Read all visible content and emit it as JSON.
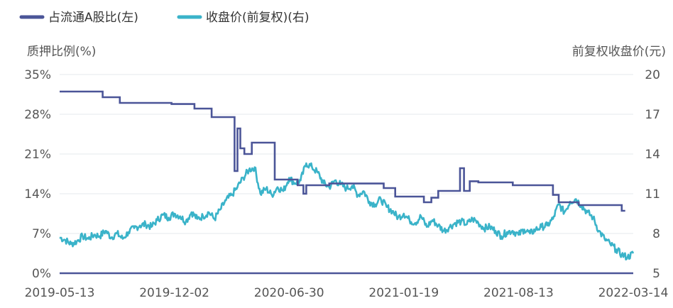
{
  "chart_data": {
    "type": "line",
    "legend": [
      {
        "label": "占流通A股比(左)",
        "color": "#4b5598"
      },
      {
        "label": "收盘价(前复权)(右)",
        "color": "#3ab3c9"
      }
    ],
    "left_axis": {
      "title": "质押比例(%)",
      "ticks": [
        "35%",
        "28%",
        "21%",
        "14%",
        "7%",
        "0%"
      ],
      "ylim": [
        0,
        35
      ]
    },
    "right_axis": {
      "title": "前复权收盘价(元)",
      "ticks": [
        "20",
        "17",
        "14",
        "11",
        "8",
        "5"
      ],
      "ylim": [
        5,
        20
      ]
    },
    "x_ticks": [
      "2019-05-13",
      "2019-12-02",
      "2020-06-30",
      "2021-01-19",
      "2021-08-13",
      "2022-03-14"
    ],
    "x_range": [
      0,
      100
    ],
    "series": [
      {
        "name": "占流通A股比(左)",
        "axis": "left",
        "color": "#4b5598",
        "shape": "step",
        "points": [
          [
            0,
            32
          ],
          [
            7.5,
            32
          ],
          [
            7.5,
            31
          ],
          [
            10.5,
            31
          ],
          [
            10.5,
            30
          ],
          [
            19.5,
            30
          ],
          [
            19.5,
            29.8
          ],
          [
            23.5,
            29.8
          ],
          [
            23.5,
            29
          ],
          [
            26.5,
            29
          ],
          [
            26.5,
            27.5
          ],
          [
            30.5,
            27.5
          ],
          [
            30.5,
            18
          ],
          [
            31,
            18
          ],
          [
            31,
            25.5
          ],
          [
            31.5,
            25.5
          ],
          [
            31.5,
            22
          ],
          [
            32.2,
            22
          ],
          [
            32.2,
            21
          ],
          [
            33.5,
            21
          ],
          [
            33.5,
            23
          ],
          [
            37.5,
            23
          ],
          [
            37.5,
            16.5
          ],
          [
            41.5,
            16.5
          ],
          [
            41.5,
            15.5
          ],
          [
            42.5,
            15.5
          ],
          [
            42.5,
            14
          ],
          [
            43,
            14
          ],
          [
            43,
            15.5
          ],
          [
            47,
            15.5
          ],
          [
            47,
            15.8
          ],
          [
            56.5,
            15.8
          ],
          [
            56.5,
            15
          ],
          [
            58.5,
            15
          ],
          [
            58.5,
            13.5
          ],
          [
            63.5,
            13.5
          ],
          [
            63.5,
            12.5
          ],
          [
            64.8,
            12.5
          ],
          [
            64.8,
            13.3
          ],
          [
            66,
            13.3
          ],
          [
            66,
            14.5
          ],
          [
            69.8,
            14.5
          ],
          [
            69.8,
            18.5
          ],
          [
            70.5,
            18.5
          ],
          [
            70.5,
            14.5
          ],
          [
            71.5,
            14.5
          ],
          [
            71.5,
            16.2
          ],
          [
            73,
            16.2
          ],
          [
            73,
            16
          ],
          [
            79,
            16
          ],
          [
            79,
            15.5
          ],
          [
            86,
            15.5
          ],
          [
            86,
            13.8
          ],
          [
            87,
            13.8
          ],
          [
            87,
            12.5
          ],
          [
            90.5,
            12.5
          ],
          [
            90.5,
            12
          ],
          [
            98,
            12
          ],
          [
            98,
            11
          ],
          [
            98.6,
            11
          ]
        ]
      },
      {
        "name": "收盘价(前复权)(右)",
        "axis": "right",
        "color": "#3ab3c9",
        "shape": "noisy",
        "points": [
          [
            0,
            7.7
          ],
          [
            1,
            7.5
          ],
          [
            2,
            7.2
          ],
          [
            3,
            7.4
          ],
          [
            4,
            7.8
          ],
          [
            5,
            7.6
          ],
          [
            6,
            7.9
          ],
          [
            7,
            7.8
          ],
          [
            8,
            8.2
          ],
          [
            9,
            7.7
          ],
          [
            10,
            8.0
          ],
          [
            11,
            7.6
          ],
          [
            12,
            8.1
          ],
          [
            13,
            8.4
          ],
          [
            14,
            8.6
          ],
          [
            15,
            8.7
          ],
          [
            16,
            8.5
          ],
          [
            17,
            9.0
          ],
          [
            18,
            9.4
          ],
          [
            19,
            9.2
          ],
          [
            20,
            9.5
          ],
          [
            21,
            9.3
          ],
          [
            22,
            8.9
          ],
          [
            23,
            9.6
          ],
          [
            24,
            9.1
          ],
          [
            25,
            9.3
          ],
          [
            26,
            9.6
          ],
          [
            27,
            9.1
          ],
          [
            28,
            9.8
          ],
          [
            29,
            10.5
          ],
          [
            30,
            10.9
          ],
          [
            31,
            11.5
          ],
          [
            32,
            12.2
          ],
          [
            33,
            12.8
          ],
          [
            34,
            13.0
          ],
          [
            35,
            11.0
          ],
          [
            36,
            11.4
          ],
          [
            37,
            10.9
          ],
          [
            38,
            11.5
          ],
          [
            39,
            11.2
          ],
          [
            40,
            12.2
          ],
          [
            41,
            11.8
          ],
          [
            42,
            12.0
          ],
          [
            43,
            13.3
          ],
          [
            44,
            13.0
          ],
          [
            45,
            12.6
          ],
          [
            46,
            11.8
          ],
          [
            47,
            11.5
          ],
          [
            48,
            12.0
          ],
          [
            49,
            11.7
          ],
          [
            50,
            11.4
          ],
          [
            51,
            11.6
          ],
          [
            52,
            10.9
          ],
          [
            53,
            11.2
          ],
          [
            54,
            10.4
          ],
          [
            55,
            10.2
          ],
          [
            56,
            10.6
          ],
          [
            57,
            10.0
          ],
          [
            58,
            9.7
          ],
          [
            59,
            9.2
          ],
          [
            60,
            9.5
          ],
          [
            61,
            9.0
          ],
          [
            62,
            8.8
          ],
          [
            63,
            9.3
          ],
          [
            64,
            8.5
          ],
          [
            65,
            9.0
          ],
          [
            66,
            8.6
          ],
          [
            67,
            8.2
          ],
          [
            68,
            8.5
          ],
          [
            69,
            8.8
          ],
          [
            70,
            8.9
          ],
          [
            71,
            8.7
          ],
          [
            72,
            9.1
          ],
          [
            73,
            8.8
          ],
          [
            74,
            8.4
          ],
          [
            75,
            8.5
          ],
          [
            76,
            8.2
          ],
          [
            77,
            7.8
          ],
          [
            78,
            8.1
          ],
          [
            79,
            8.2
          ],
          [
            80,
            7.9
          ],
          [
            81,
            8.3
          ],
          [
            82,
            8.0
          ],
          [
            83,
            8.3
          ],
          [
            84,
            8.5
          ],
          [
            85,
            8.6
          ],
          [
            86,
            9.1
          ],
          [
            87,
            10.2
          ],
          [
            88,
            9.6
          ],
          [
            89,
            10.4
          ],
          [
            90,
            10.6
          ],
          [
            91,
            10.1
          ],
          [
            92,
            9.6
          ],
          [
            93,
            9.2
          ],
          [
            94,
            8.2
          ],
          [
            95,
            7.6
          ],
          [
            96,
            7.2
          ],
          [
            97,
            6.8
          ],
          [
            98,
            6.4
          ],
          [
            99,
            6.2
          ],
          [
            100,
            6.5
          ]
        ]
      }
    ]
  }
}
